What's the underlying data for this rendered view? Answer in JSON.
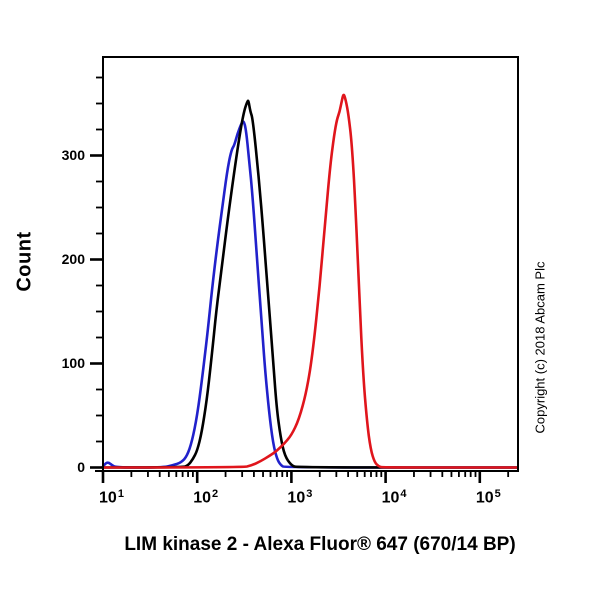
{
  "figure": {
    "title": "LIM kinase 2 - Alexa Fluor® 647 (670/14 BP)",
    "y_axis_label": "Count",
    "copyright": "Copyright (c) 2018 Abcam Plc",
    "axis_color": "#000000",
    "background_color": "#ffffff"
  },
  "chart_data": {
    "type": "line",
    "subtype": "flow-cytometry-histogram",
    "title": "LIM kinase 2 - Alexa Fluor® 647 (670/14 BP)",
    "xlabel": "LIM kinase 2 - Alexa Fluor® 647 (670/14 BP)",
    "ylabel": "Count",
    "x_scale": "log10",
    "xlim": [
      10,
      260000
    ],
    "ylim": [
      0,
      395
    ],
    "grid": false,
    "legend": "none",
    "x_ticks": [
      {
        "base": "10",
        "exp": "1",
        "value": 10
      },
      {
        "base": "10",
        "exp": "2",
        "value": 100
      },
      {
        "base": "10",
        "exp": "3",
        "value": 1000
      },
      {
        "base": "10",
        "exp": "4",
        "value": 10000
      },
      {
        "base": "10",
        "exp": "5",
        "value": 100000
      }
    ],
    "y_ticks": [
      {
        "label": "0",
        "value": 0
      },
      {
        "label": "100",
        "value": 100
      },
      {
        "label": "200",
        "value": 200
      },
      {
        "label": "300",
        "value": 300
      }
    ],
    "y_minor_tick_step": 25,
    "series": [
      {
        "name": "blue-control-curve",
        "color": "#2121cb",
        "points": [
          [
            10,
            1
          ],
          [
            10.6,
            4
          ],
          [
            11.5,
            5
          ],
          [
            12.5,
            2
          ],
          [
            14,
            0
          ],
          [
            42,
            0
          ],
          [
            55,
            2
          ],
          [
            68,
            5
          ],
          [
            78,
            11
          ],
          [
            88,
            25
          ],
          [
            100,
            50
          ],
          [
            113,
            86
          ],
          [
            128,
            127
          ],
          [
            144,
            172
          ],
          [
            162,
            211
          ],
          [
            184,
            249
          ],
          [
            207,
            284
          ],
          [
            230,
            305
          ],
          [
            248,
            310
          ],
          [
            268,
            321
          ],
          [
            292,
            330
          ],
          [
            310,
            334
          ],
          [
            330,
            325
          ],
          [
            355,
            297
          ],
          [
            390,
            257
          ],
          [
            430,
            202
          ],
          [
            475,
            149
          ],
          [
            525,
            94
          ],
          [
            580,
            53
          ],
          [
            640,
            23
          ],
          [
            705,
            8
          ],
          [
            775,
            2
          ],
          [
            855,
            0
          ],
          [
            250000,
            0
          ]
        ]
      },
      {
        "name": "black-control-curve",
        "color": "#000000",
        "points": [
          [
            10,
            0
          ],
          [
            70,
            0
          ],
          [
            80,
            2
          ],
          [
            90,
            8
          ],
          [
            100,
            16
          ],
          [
            112,
            34
          ],
          [
            126,
            64
          ],
          [
            142,
            105
          ],
          [
            160,
            152
          ],
          [
            182,
            192
          ],
          [
            212,
            240
          ],
          [
            245,
            282
          ],
          [
            277,
            315
          ],
          [
            311,
            341
          ],
          [
            340,
            352
          ],
          [
            350,
            353
          ],
          [
            367,
            342
          ],
          [
            388,
            336
          ],
          [
            450,
            280
          ],
          [
            508,
            222
          ],
          [
            560,
            170
          ],
          [
            630,
            112
          ],
          [
            695,
            58
          ],
          [
            768,
            29
          ],
          [
            852,
            11
          ],
          [
            1000,
            2
          ],
          [
            1150,
            0
          ],
          [
            250000,
            0
          ]
        ]
      },
      {
        "name": "red-stained-curve",
        "color": "#e0151c",
        "points": [
          [
            10,
            0
          ],
          [
            300,
            0
          ],
          [
            380,
            2
          ],
          [
            470,
            6
          ],
          [
            580,
            11
          ],
          [
            700,
            16
          ],
          [
            840,
            23
          ],
          [
            1000,
            31
          ],
          [
            1200,
            46
          ],
          [
            1450,
            73
          ],
          [
            1700,
            113
          ],
          [
            2000,
            175
          ],
          [
            2300,
            240
          ],
          [
            2600,
            293
          ],
          [
            2850,
            320
          ],
          [
            3050,
            335
          ],
          [
            3250,
            342
          ],
          [
            3400,
            351
          ],
          [
            3570,
            360
          ],
          [
            3760,
            354
          ],
          [
            4060,
            338
          ],
          [
            4420,
            307
          ],
          [
            4820,
            246
          ],
          [
            5280,
            162
          ],
          [
            5780,
            88
          ],
          [
            6340,
            44
          ],
          [
            6950,
            17
          ],
          [
            7650,
            5
          ],
          [
            8450,
            1
          ],
          [
            9300,
            0
          ],
          [
            250000,
            0
          ]
        ]
      }
    ]
  }
}
